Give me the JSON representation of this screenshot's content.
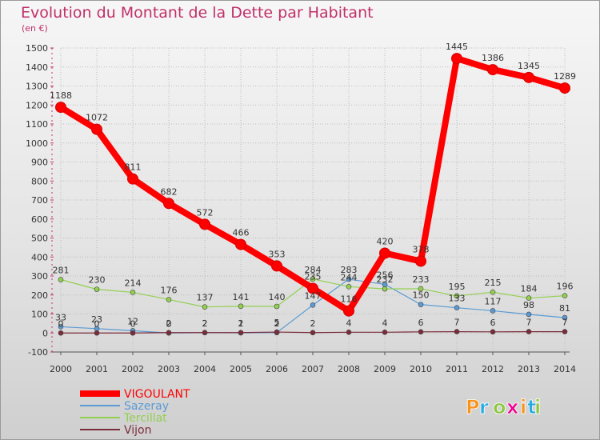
{
  "chart_data": {
    "type": "line",
    "title": "Evolution du Montant de la Dette par Habitant",
    "subtitle": "(en €)",
    "xlabel": "",
    "ylabel": "",
    "ylim": [
      -100,
      1500
    ],
    "yticks": [
      -100,
      0,
      100,
      200,
      300,
      400,
      500,
      600,
      700,
      800,
      900,
      1000,
      1100,
      1200,
      1300,
      1400,
      1500
    ],
    "categories": [
      "2000",
      "2001",
      "2002",
      "2003",
      "2004",
      "2005",
      "2006",
      "2007",
      "2008",
      "2009",
      "2010",
      "2011",
      "2012",
      "2013",
      "2014"
    ],
    "grid": true,
    "legend_position": "bottom-left",
    "series": [
      {
        "name": "VIGOULANT",
        "color": "#ff0000",
        "emphasis": true,
        "values": [
          1188,
          1072,
          811,
          682,
          572,
          466,
          353,
          235,
          116,
          420,
          378,
          1445,
          1386,
          1345,
          1289
        ]
      },
      {
        "name": "Sazeray",
        "color": "#5b9bd5",
        "values": [
          33,
          23,
          12,
          0,
          2,
          1,
          2,
          147,
          283,
          256,
          150,
          133,
          117,
          98,
          81
        ]
      },
      {
        "name": "Tercillat",
        "color": "#92d050",
        "values": [
          281,
          230,
          214,
          176,
          137,
          141,
          140,
          284,
          244,
          232,
          233,
          195,
          215,
          184,
          196
        ]
      },
      {
        "name": "Vijon",
        "color": "#7b2c3a",
        "values": [
          0,
          0,
          0,
          2,
          2,
          2,
          5,
          2,
          4,
          4,
          6,
          7,
          6,
          7,
          7
        ]
      }
    ]
  },
  "logo": {
    "text": "Proxiti",
    "colors": [
      "#f7941d",
      "#27aae1",
      "#8dc63f",
      "#ec008c"
    ]
  }
}
